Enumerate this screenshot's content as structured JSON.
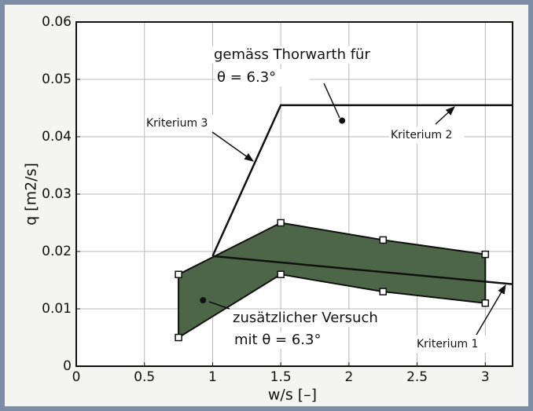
{
  "chart_data": {
    "type": "line",
    "xlabel": "w/s [–]",
    "ylabel": "q [m2/s]",
    "xlim": [
      0,
      3.2
    ],
    "ylim": [
      0,
      0.06
    ],
    "xticks": [
      0,
      0.5,
      1,
      1.5,
      2,
      2.5,
      3
    ],
    "yticks": [
      0,
      0.01,
      0.02,
      0.03,
      0.04,
      0.05,
      0.06
    ],
    "grid": true,
    "series": [
      {
        "x": [
          1,
          1.5,
          3.2
        ],
        "values": [
          0.0192,
          0.0455,
          0.0455
        ],
        "color": "#111111"
      },
      {
        "x": [
          1,
          3.2
        ],
        "values": [
          0.0192,
          0.0143
        ],
        "color": "#111111"
      }
    ],
    "region": {
      "x": [
        0.75,
        1.5,
        2.25,
        3,
        3,
        2.25,
        1.5,
        0.75
      ],
      "values": [
        0.016,
        0.025,
        0.022,
        0.0195,
        0.011,
        0.013,
        0.016,
        0.005
      ],
      "color": "#4e6648"
    },
    "points": {
      "x": [
        1.95,
        0.93
      ],
      "values": [
        0.0428,
        0.0115
      ],
      "color": "#111111"
    },
    "annotations": [
      "gemäss Thorwarth für",
      "θ = 6.3°",
      "Kriterium 3",
      "Kriterium 2",
      "Kriterium 1",
      "zusätzlicher Versuch",
      "mit θ = 6.3°"
    ]
  }
}
